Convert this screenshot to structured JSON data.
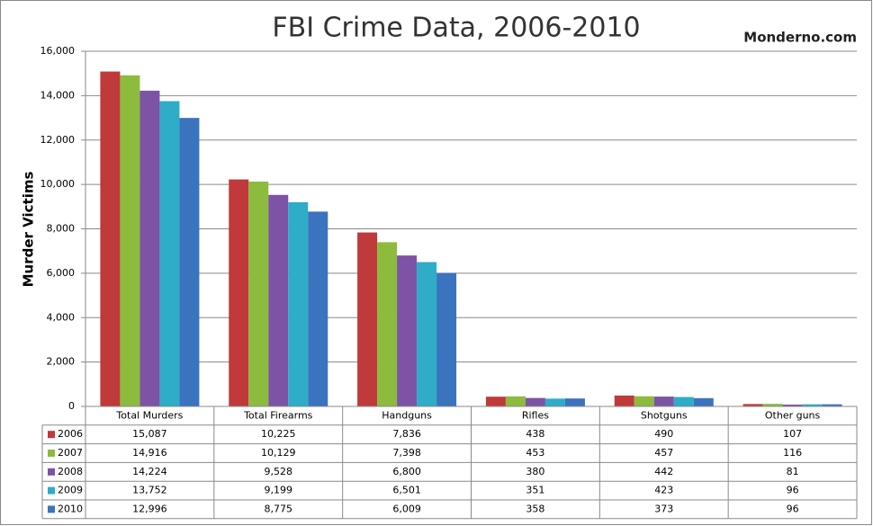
{
  "chart_data": {
    "type": "bar",
    "title": "FBI Crime Data, 2006-2010",
    "watermark": "Monderno.com",
    "y_label": "Murder Victims",
    "categories": [
      "Total Murders",
      "Total Firearms",
      "Handguns",
      "Rifles",
      "Shotguns",
      "Other guns"
    ],
    "series": [
      {
        "name": "2006",
        "color": "#c0393b",
        "values": [
          15087,
          10225,
          7836,
          438,
          490,
          107
        ],
        "value_labels": [
          "15,087",
          "10,225",
          "7,836",
          "438",
          "490",
          "107"
        ]
      },
      {
        "name": "2007",
        "color": "#8dbb3e",
        "values": [
          14916,
          10129,
          7398,
          453,
          457,
          116
        ],
        "value_labels": [
          "14,916",
          "10,129",
          "7,398",
          "453",
          "457",
          "116"
        ]
      },
      {
        "name": "2008",
        "color": "#7d53a5",
        "values": [
          14224,
          9528,
          6800,
          380,
          442,
          81
        ],
        "value_labels": [
          "14,224",
          "9,528",
          "6,800",
          "380",
          "442",
          "81"
        ]
      },
      {
        "name": "2009",
        "color": "#2eacc8",
        "values": [
          13752,
          9199,
          6501,
          351,
          423,
          96
        ],
        "value_labels": [
          "13,752",
          "9,199",
          "6,501",
          "351",
          "423",
          "96"
        ]
      },
      {
        "name": "2010",
        "color": "#3a73be",
        "values": [
          12996,
          8775,
          6009,
          358,
          373,
          96
        ],
        "value_labels": [
          "12,996",
          "8,775",
          "6,009",
          "358",
          "373",
          "96"
        ]
      }
    ],
    "ylim": [
      0,
      16000
    ],
    "yticks": [
      0,
      {
        "value": 2000,
        "label": "2,000"
      },
      {
        "value": 4000,
        "label": "4,000"
      },
      {
        "value": 6000,
        "label": "6,000"
      },
      {
        "value": 8000,
        "label": "8,000"
      },
      {
        "value": 10000,
        "label": "10,000"
      },
      {
        "value": 12000,
        "label": "12,000"
      },
      {
        "value": 14000,
        "label": "14,000"
      },
      {
        "value": 16000,
        "label": "16,000"
      }
    ],
    "grid": true
  }
}
